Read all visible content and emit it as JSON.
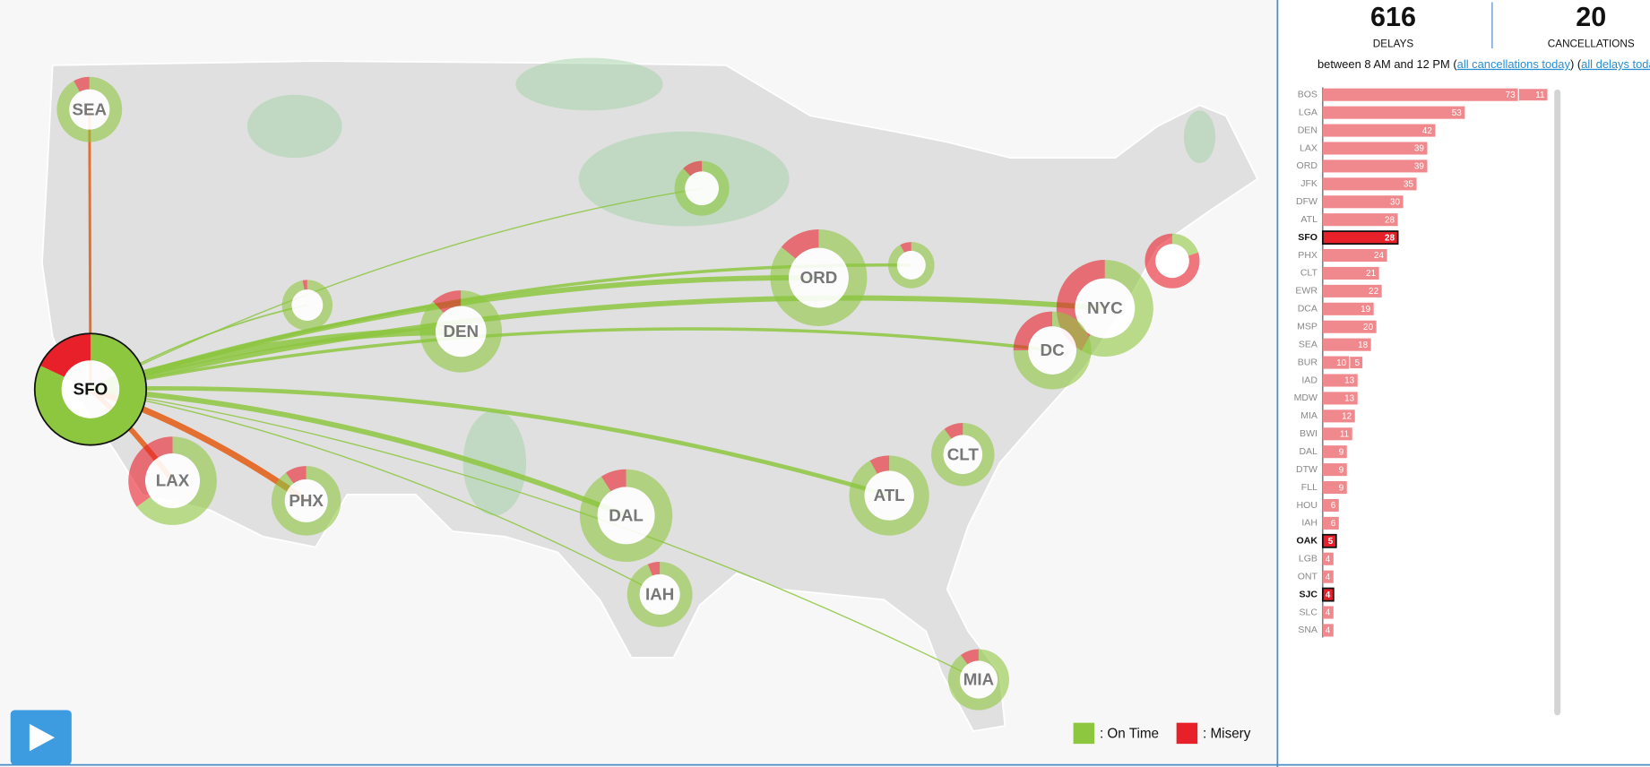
{
  "summary": {
    "delays": {
      "value": 616,
      "label": "DELAYS"
    },
    "cancellations": {
      "value": 20,
      "label": "CANCELLATIONS"
    },
    "time_range": {
      "prefix": "between 8 AM and 12 PM (",
      "cancellations_link": "all cancellations today",
      "middle": ") (",
      "delays_link": "all delays today",
      "suffix": ")"
    }
  },
  "legend": [
    {
      "label": ": On Time",
      "color": "#8dc63f"
    },
    {
      "label": ": Misery",
      "color": "#e8202a"
    }
  ],
  "airports": [
    {
      "label": "SFO",
      "on_time": 82,
      "misery": 18
    },
    {
      "label": "SEA",
      "on_time": 92,
      "misery": 8
    },
    {
      "label": null,
      "on_time": 97,
      "misery": 3
    },
    {
      "label": null,
      "on_time": 88,
      "misery": 12
    },
    {
      "label": "DEN",
      "on_time": 88,
      "misery": 12
    },
    {
      "label": "ORD",
      "on_time": 86,
      "misery": 14
    },
    {
      "label": null,
      "on_time": 92,
      "misery": 8
    },
    {
      "label": null,
      "on_time": 20,
      "misery": 80
    },
    {
      "label": "NYC",
      "on_time": 58,
      "misery": 42
    },
    {
      "label": "DC",
      "on_time": 75,
      "misery": 25
    },
    {
      "label": "LAX",
      "on_time": 65,
      "misery": 35
    },
    {
      "label": "PHX",
      "on_time": 90,
      "misery": 10
    },
    {
      "label": "DAL",
      "on_time": 91,
      "misery": 9
    },
    {
      "label": "ATL",
      "on_time": 92,
      "misery": 8
    },
    {
      "label": "CLT",
      "on_time": 90,
      "misery": 10
    },
    {
      "label": "IAH",
      "on_time": 94,
      "misery": 6
    },
    {
      "label": "MIA",
      "on_time": 90,
      "misery": 10
    }
  ],
  "chart_data": {
    "type": "bar",
    "orientation": "horizontal",
    "categories": [
      "BOS",
      "LGA",
      "DEN",
      "LAX",
      "ORD",
      "JFK",
      "DFW",
      "ATL",
      "SFO",
      "PHX",
      "CLT",
      "EWR",
      "DCA",
      "MSP",
      "SEA",
      "BUR",
      "IAD",
      "MDW",
      "MIA",
      "BWI",
      "DAL",
      "DTW",
      "FLL",
      "HOU",
      "IAH",
      "OAK",
      "LGB",
      "ONT",
      "SJC",
      "SLC",
      "SNA"
    ],
    "series": [
      {
        "color": "#f0898d",
        "values": [
          73,
          53,
          42,
          39,
          39,
          35,
          30,
          28,
          28,
          24,
          21,
          22,
          19,
          20,
          18,
          10,
          13,
          13,
          12,
          11,
          9,
          9,
          9,
          6,
          6,
          5,
          4,
          4,
          4,
          4,
          4
        ],
        "colors": [
          "#f0898d",
          "#f0898d",
          "#f0898d",
          "#f0898d",
          "#f0898d",
          "#f0898d",
          "#f0898d",
          "#f0898d",
          "#e8202a",
          "#f0898d",
          "#f0898d",
          "#f0898d",
          "#f0898d",
          "#f0898d",
          "#f0898d",
          "#f0898d",
          "#f0898d",
          "#f0898d",
          "#f0898d",
          "#f0898d",
          "#f0898d",
          "#f0898d",
          "#f0898d",
          "#f0898d",
          "#f0898d",
          "#e8202a",
          "#f0898d",
          "#f0898d",
          "#e8202a",
          "#f0898d",
          "#f0898d"
        ]
      },
      {
        "color": "#f0898d",
        "values": [
          11,
          null,
          null,
          null,
          null,
          null,
          null,
          null,
          null,
          null,
          null,
          null,
          null,
          null,
          null,
          5,
          null,
          null,
          null,
          null,
          null,
          null,
          null,
          null,
          null,
          null,
          null,
          null,
          null,
          null,
          null
        ]
      }
    ],
    "xlim": [
      0,
      84
    ]
  }
}
